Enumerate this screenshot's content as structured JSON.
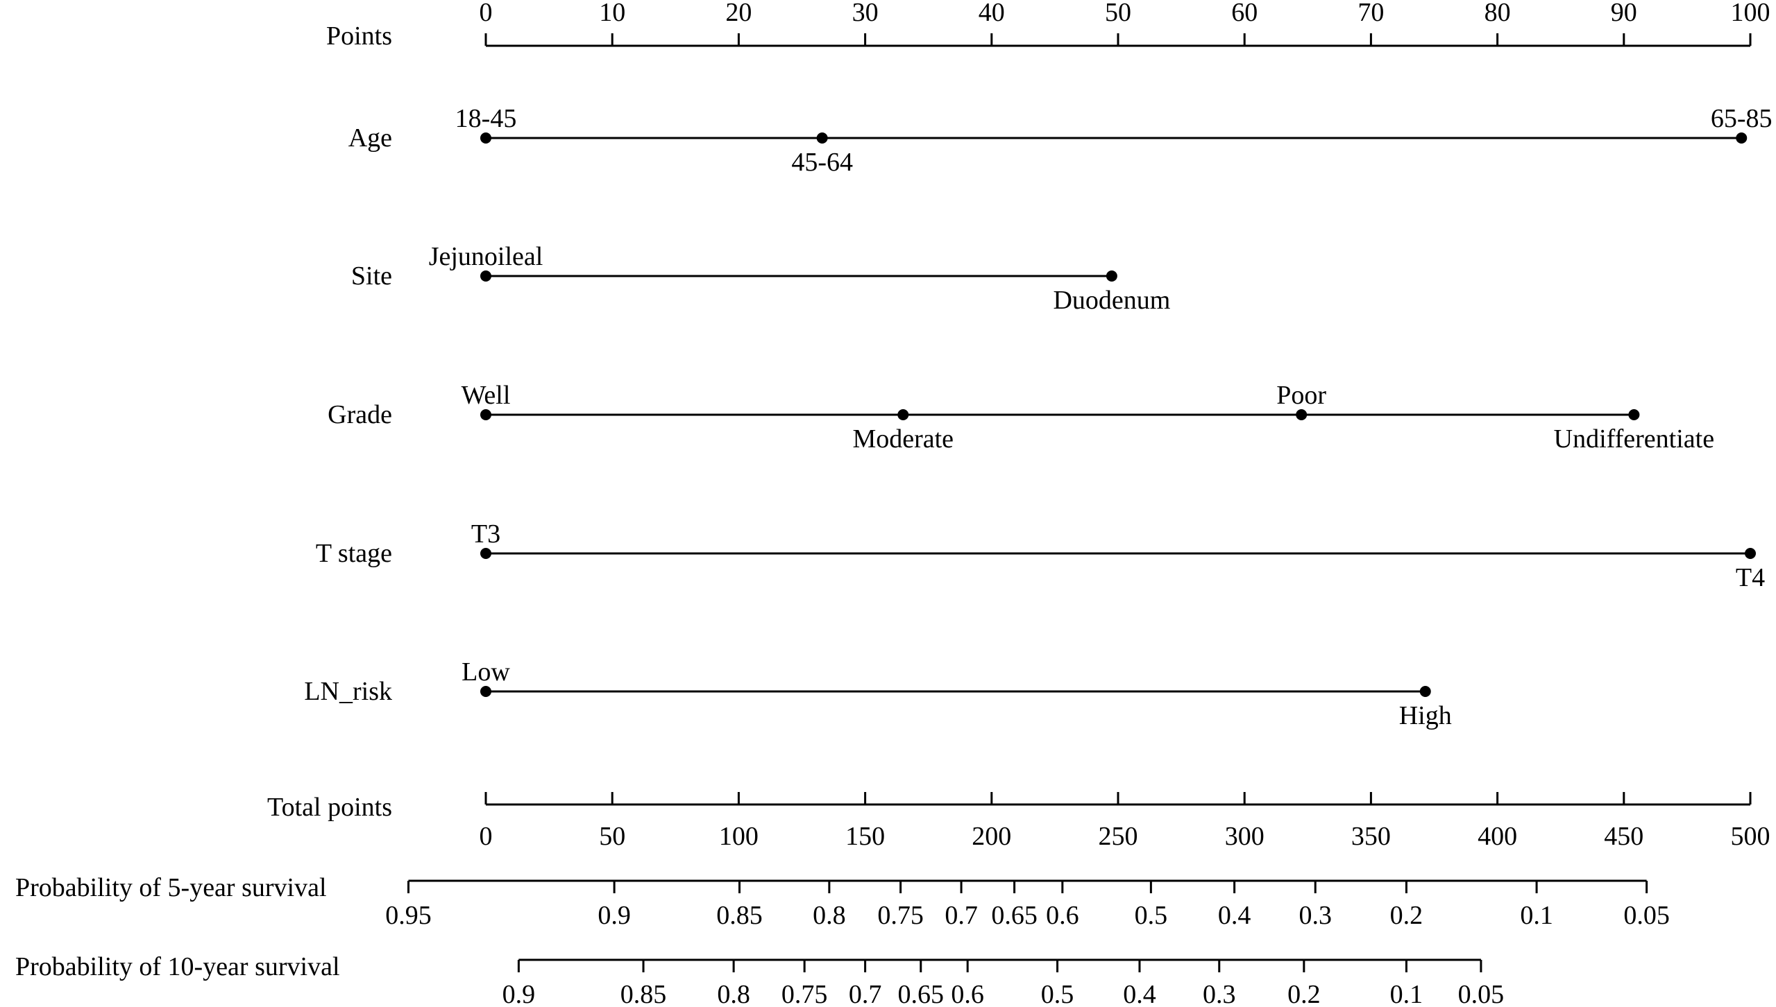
{
  "chart_data": {
    "type": "nomogram",
    "points_scale": {
      "label": "Points",
      "range": [
        0,
        100
      ],
      "ticks": [
        0,
        10,
        20,
        30,
        40,
        50,
        60,
        70,
        80,
        90,
        100
      ],
      "tick_labels": [
        "0",
        "10",
        "20",
        "30",
        "40",
        "50",
        "60",
        "70",
        "80",
        "90",
        "100"
      ]
    },
    "variables": [
      {
        "name": "Age",
        "levels": [
          {
            "label": "18-45",
            "points": 0,
            "label_side": "above"
          },
          {
            "label": "45-64",
            "points": 26.6,
            "label_side": "below"
          },
          {
            "label": "65-85",
            "points": 99.3,
            "label_side": "above"
          }
        ]
      },
      {
        "name": "Site",
        "levels": [
          {
            "label": "Jejunoileal",
            "points": 0,
            "label_side": "above"
          },
          {
            "label": "Duodenum",
            "points": 49.5,
            "label_side": "below"
          }
        ]
      },
      {
        "name": "Grade",
        "levels": [
          {
            "label": "Well",
            "points": 0,
            "label_side": "above"
          },
          {
            "label": "Moderate",
            "points": 33.0,
            "label_side": "below"
          },
          {
            "label": "Poor",
            "points": 64.5,
            "label_side": "above"
          },
          {
            "label": "Undifferentiate",
            "points": 90.8,
            "label_side": "below"
          }
        ]
      },
      {
        "name": "T stage",
        "levels": [
          {
            "label": "T3",
            "points": 0,
            "label_side": "above"
          },
          {
            "label": "T4",
            "points": 100,
            "label_side": "below"
          }
        ]
      },
      {
        "name": "LN_risk",
        "levels": [
          {
            "label": "Low",
            "points": 0,
            "label_side": "above"
          },
          {
            "label": "High",
            "points": 74.3,
            "label_side": "below"
          }
        ]
      }
    ],
    "total_points_scale": {
      "label": "Total points",
      "range": [
        0,
        500
      ],
      "ticks": [
        0,
        50,
        100,
        150,
        200,
        250,
        300,
        350,
        400,
        450,
        500
      ],
      "tick_labels": [
        "0",
        "50",
        "100",
        "150",
        "200",
        "250",
        "300",
        "350",
        "400",
        "450",
        "500"
      ]
    },
    "probability_scales": [
      {
        "label": "Probability of 5-year survival",
        "ticks": [
          {
            "label": "0.95",
            "total_points": -30.6
          },
          {
            "label": "0.9",
            "total_points": 50.8
          },
          {
            "label": "0.85",
            "total_points": 100.3
          },
          {
            "label": "0.8",
            "total_points": 135.8
          },
          {
            "label": "0.75",
            "total_points": 164.0
          },
          {
            "label": "0.7",
            "total_points": 188.0
          },
          {
            "label": "0.65",
            "total_points": 209.0
          },
          {
            "label": "0.6",
            "total_points": 228.0
          },
          {
            "label": "0.5",
            "total_points": 263.0
          },
          {
            "label": "0.4",
            "total_points": 296.0
          },
          {
            "label": "0.3",
            "total_points": 328.0
          },
          {
            "label": "0.2",
            "total_points": 364.0
          },
          {
            "label": "0.1",
            "total_points": 415.5
          },
          {
            "label": "0.05",
            "total_points": 459.0
          }
        ]
      },
      {
        "label": "Probability of 10-year survival",
        "ticks": [
          {
            "label": "0.9",
            "total_points": 13.0
          },
          {
            "label": "0.85",
            "total_points": 62.3
          },
          {
            "label": "0.8",
            "total_points": 98.0
          },
          {
            "label": "0.75",
            "total_points": 126.0
          },
          {
            "label": "0.7",
            "total_points": 150.0
          },
          {
            "label": "0.65",
            "total_points": 172.0
          },
          {
            "label": "0.6",
            "total_points": 190.5
          },
          {
            "label": "0.5",
            "total_points": 226.0
          },
          {
            "label": "0.4",
            "total_points": 258.5
          },
          {
            "label": "0.3",
            "total_points": 290.0
          },
          {
            "label": "0.2",
            "total_points": 323.5
          },
          {
            "label": "0.1",
            "total_points": 364.0
          },
          {
            "label": "0.05",
            "total_points": 393.5
          }
        ]
      }
    ]
  }
}
